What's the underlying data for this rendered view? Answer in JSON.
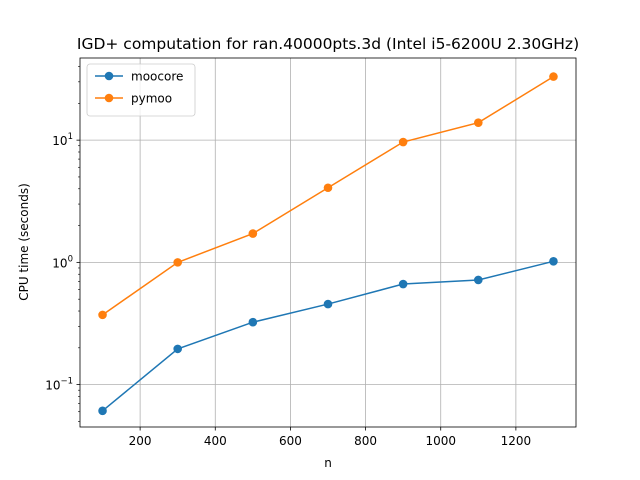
{
  "chart_data": {
    "type": "line",
    "title": "IGD+ computation for ran.40000pts.3d (Intel i5-6200U 2.30GHz)",
    "xlabel": "n",
    "ylabel": "CPU time (seconds)",
    "xlim": [
      40,
      1360
    ],
    "ylim": [
      0.045,
      47
    ],
    "yscale": "log",
    "grid": true,
    "legend_position": "top-left",
    "x_ticks": [
      200,
      400,
      600,
      800,
      1000,
      1200
    ],
    "x_tick_labels": [
      "200",
      "400",
      "600",
      "800",
      "1000",
      "1200"
    ],
    "y_ticks": [
      0.1,
      1,
      10
    ],
    "y_tick_labels": [
      {
        "base": "10",
        "exp": "−1"
      },
      {
        "base": "10",
        "exp": "0"
      },
      {
        "base": "10",
        "exp": "1"
      }
    ],
    "x": [
      100,
      300,
      500,
      700,
      900,
      1100,
      1300
    ],
    "series": [
      {
        "name": "moocore",
        "color": "#1f77b4",
        "values": [
          0.061,
          0.196,
          0.324,
          0.456,
          0.665,
          0.718,
          1.02
        ]
      },
      {
        "name": "pymoo",
        "color": "#ff7f0e",
        "values": [
          0.372,
          1.0,
          1.72,
          4.08,
          9.65,
          13.9,
          33.1
        ]
      }
    ]
  }
}
